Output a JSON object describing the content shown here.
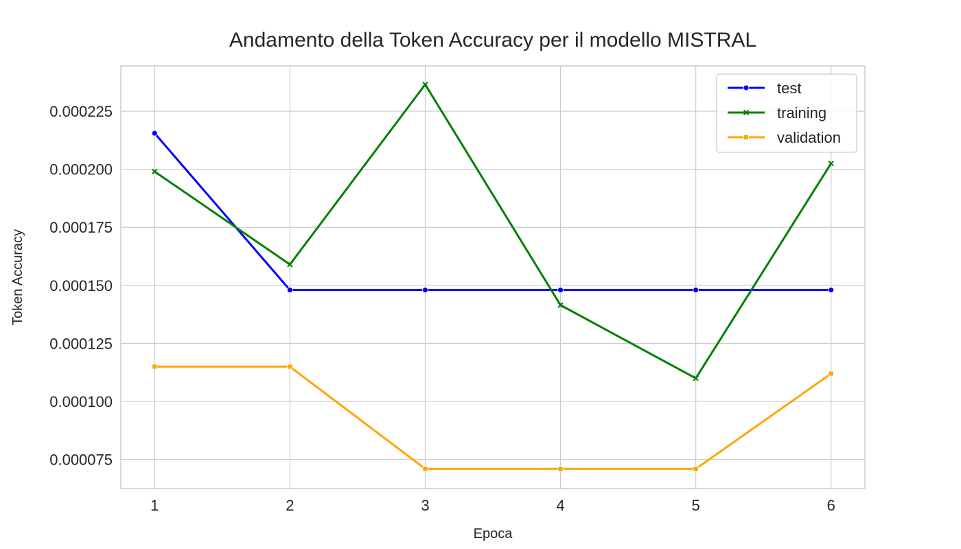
{
  "chart_data": {
    "type": "line",
    "title": "Andamento della Token Accuracy per il modello MISTRAL",
    "xlabel": "Epoca",
    "ylabel": "Token Accuracy",
    "x": [
      1,
      2,
      3,
      4,
      5,
      6
    ],
    "x_tick_labels": [
      "1",
      "2",
      "3",
      "4",
      "5",
      "6"
    ],
    "y_ticks": [
      7.5e-05,
      0.0001,
      0.000125,
      0.00015,
      0.000175,
      0.0002,
      0.000225
    ],
    "y_tick_labels": [
      "0.000075",
      "0.000100",
      "0.000125",
      "0.000150",
      "0.000175",
      "0.000200",
      "0.000225"
    ],
    "xlim": [
      0.75,
      6.25
    ],
    "ylim": [
      6.25e-05,
      0.0002445
    ],
    "grid": true,
    "legend_position": "top-right",
    "series": [
      {
        "name": "test",
        "color": "#0000ff",
        "marker": "circle",
        "values": [
          0.0002155,
          0.000148,
          0.000148,
          0.000148,
          0.000148,
          0.000148
        ]
      },
      {
        "name": "training",
        "color": "#008000",
        "marker": "x",
        "values": [
          0.000199,
          0.000159,
          0.0002365,
          0.0001415,
          0.00011,
          0.0002025
        ]
      },
      {
        "name": "validation",
        "color": "#ffa500",
        "marker": "square",
        "values": [
          0.000115,
          0.000115,
          7.1e-05,
          7.1e-05,
          7.1e-05,
          0.000112
        ]
      }
    ]
  }
}
